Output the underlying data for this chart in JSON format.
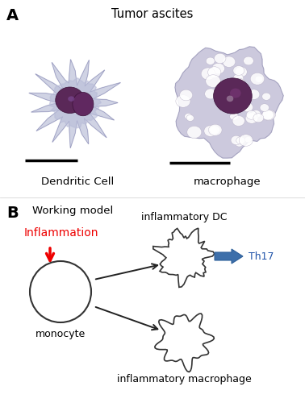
{
  "panel_A_label": "A",
  "panel_B_label": "B",
  "title_A": "Tumor ascites",
  "label_DC": "Dendritic Cell",
  "label_macro": "macrophage",
  "working_model_text": "Working model",
  "inflammation_text": "Inflammation",
  "monocyte_text": "monocyte",
  "infDC_text": "inflammatory DC",
  "infMacro_text": "inflammatory macrophage",
  "Th17_text": "Th17",
  "bg_color": "#ffffff",
  "cell_bg": "#e8eaf2",
  "inflammation_color": "#ee0000",
  "Th17_color": "#2255aa",
  "Th17_arrow_color": "#3366aa"
}
